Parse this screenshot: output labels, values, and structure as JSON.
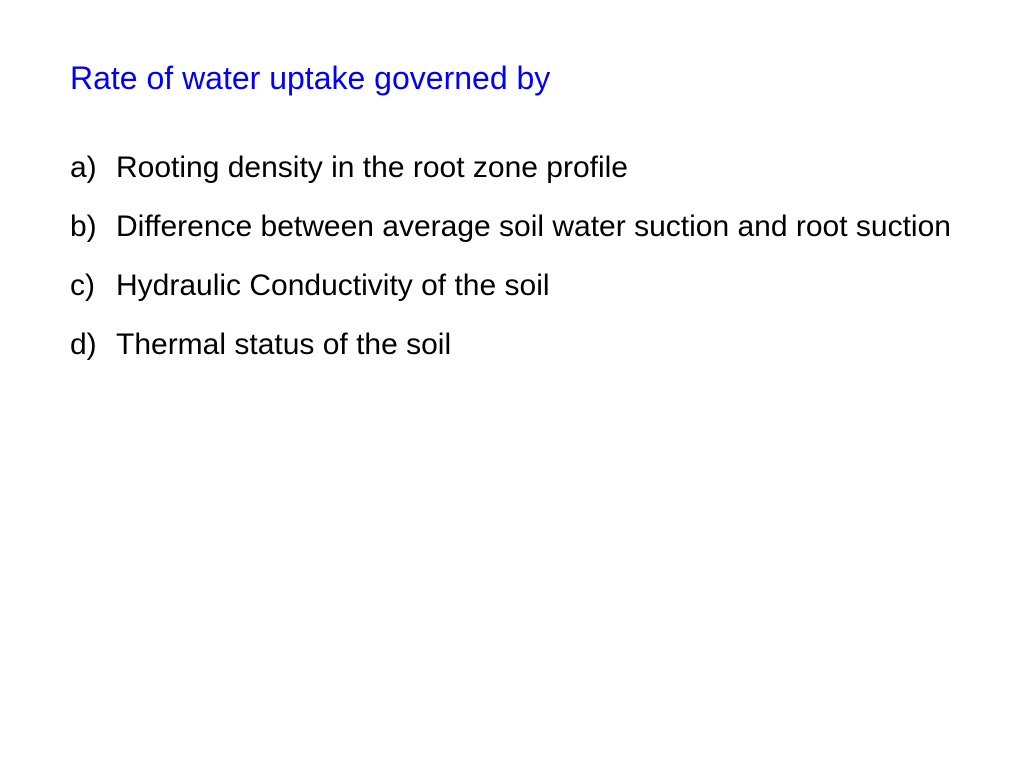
{
  "title": "Rate of water uptake governed by",
  "items": [
    {
      "marker": "a)",
      "text": "Rooting density in the root zone profile"
    },
    {
      "marker": "b)",
      "text": "Difference between average soil water suction and root suction"
    },
    {
      "marker": "c)",
      "text": "Hydraulic Conductivity of the soil"
    },
    {
      "marker": "d)",
      "text": "Thermal status of the soil"
    }
  ],
  "colors": {
    "title": "#0000ff",
    "body": "#000000",
    "background": "#ffffff"
  },
  "typography": {
    "title_fontsize": 32,
    "body_fontsize": 30,
    "font_family": "Verdana"
  }
}
